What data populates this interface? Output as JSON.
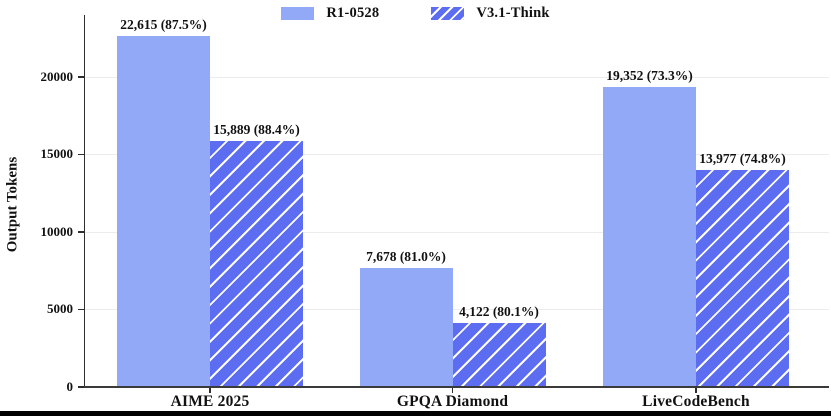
{
  "chart_data": {
    "type": "bar",
    "title": "",
    "xlabel": "",
    "ylabel": "Output Tokens",
    "categories": [
      "AIME 2025",
      "GPQA Diamond",
      "LiveCodeBench"
    ],
    "series": [
      {
        "name": "R1-0528",
        "style": "solid",
        "color": "#92a9f7",
        "values": [
          22615,
          7678,
          19352
        ],
        "labels": [
          "22,615 (87.5%)",
          "7,678 (81.0%)",
          "19,352 (73.3%)"
        ]
      },
      {
        "name": "V3.1-Think",
        "style": "hatched",
        "color": "#5d6df2",
        "hatch_color": "#ffffff",
        "values": [
          15889,
          4122,
          13977
        ],
        "labels": [
          "15,889 (88.4%)",
          "4,122 (80.1%)",
          "13,977 (74.8%)"
        ]
      }
    ],
    "ylim": [
      0,
      24000
    ],
    "yticks": [
      0,
      5000,
      10000,
      15000,
      20000
    ],
    "grid": true,
    "legend_position": "top-center"
  },
  "colors": {
    "grid": "#ececec",
    "axis": "#2e2e2e",
    "text": "#111111",
    "bottom_border": "#000000"
  }
}
